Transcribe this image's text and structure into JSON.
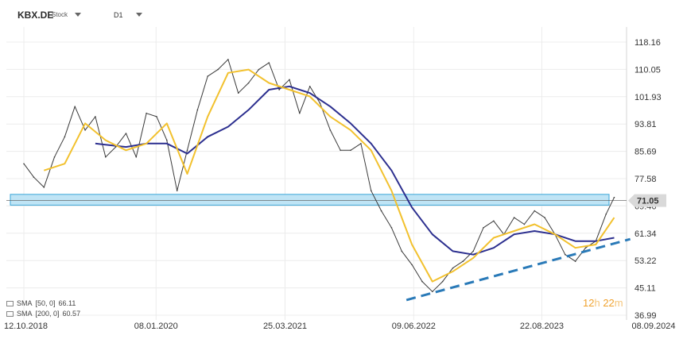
{
  "header": {
    "symbol": "KBX.DE",
    "symbol_type": "Stock",
    "timeframe": "D1"
  },
  "legend": [
    {
      "label": "SMA",
      "params": "[50,  0]",
      "value": "66.11"
    },
    {
      "label": "SMA",
      "params": "[200,  0]",
      "value": "60.57"
    }
  ],
  "countdown": {
    "hours": "12",
    "h_unit": "h",
    "minutes": "22",
    "m_unit": "m"
  },
  "colors": {
    "price": "#3a3a3a",
    "sma50": "#f2c12e",
    "sma200": "#2c2f8f",
    "zone_fill": "#bfe4f5",
    "zone_stroke": "#3aa6d8",
    "trendline": "#2a7ab8",
    "price_label_bg": "#d9d9d9",
    "countdown": "#f0a22e"
  },
  "chart_data": {
    "type": "line",
    "x_ticks": [
      "12.10.2018",
      "08.01.2020",
      "25.03.2021",
      "09.06.2022",
      "22.08.2023",
      "08.09.2024"
    ],
    "y_ticks": [
      "118.16",
      "110.05",
      "101.93",
      "93.81",
      "85.69",
      "77.58",
      "69.46",
      "61.34",
      "53.22",
      "45.11",
      "36.99"
    ],
    "ylim": [
      36.99,
      118.16
    ],
    "current_price_label": "71.05",
    "grid": true,
    "support_zone": {
      "low": 69.7,
      "high": 72.9
    },
    "trendline": {
      "from": {
        "date": "2022-05-15",
        "value": 41.5
      },
      "to": {
        "date": "2024-06-20",
        "value": 59.6
      }
    },
    "series": [
      {
        "name": "Price",
        "role": "price",
        "dates": [
          "2018-10-12",
          "2018-11-15",
          "2018-12-20",
          "2019-01-25",
          "2019-03-01",
          "2019-04-05",
          "2019-05-10",
          "2019-06-14",
          "2019-07-19",
          "2019-08-23",
          "2019-09-27",
          "2019-11-01",
          "2019-12-06",
          "2020-01-10",
          "2020-02-14",
          "2020-03-20",
          "2020-04-24",
          "2020-05-29",
          "2020-07-03",
          "2020-08-07",
          "2020-09-11",
          "2020-10-16",
          "2020-11-20",
          "2020-12-25",
          "2021-01-29",
          "2021-03-05",
          "2021-04-09",
          "2021-05-14",
          "2021-06-18",
          "2021-07-23",
          "2021-08-27",
          "2021-10-01",
          "2021-11-05",
          "2021-12-10",
          "2022-01-14",
          "2022-02-18",
          "2022-03-25",
          "2022-04-29",
          "2022-06-03",
          "2022-07-08",
          "2022-08-12",
          "2022-09-16",
          "2022-10-21",
          "2022-11-25",
          "2022-12-30",
          "2023-02-03",
          "2023-03-10",
          "2023-04-14",
          "2023-05-19",
          "2023-06-23",
          "2023-07-28",
          "2023-09-01",
          "2023-10-06",
          "2023-11-10",
          "2023-12-15",
          "2024-01-19",
          "2024-02-23",
          "2024-03-29",
          "2024-04-26"
        ],
        "values": [
          82,
          78,
          75,
          84,
          90,
          99,
          92,
          96,
          84,
          87,
          91,
          84,
          97,
          96,
          89,
          74,
          86,
          98,
          108,
          110,
          113,
          103,
          106,
          110,
          112,
          104,
          107,
          97,
          105,
          100,
          92,
          86,
          86,
          88,
          74,
          68,
          63,
          56,
          52,
          47,
          44,
          47,
          51,
          53,
          56,
          63,
          65,
          61,
          66,
          64,
          68,
          66,
          61,
          55,
          53,
          57,
          59,
          67,
          72
        ]
      },
      {
        "name": "SMA [50,  0]",
        "role": "sma50",
        "dates": [
          "2018-12-20",
          "2019-03-01",
          "2019-05-10",
          "2019-07-19",
          "2019-09-27",
          "2019-12-06",
          "2020-02-14",
          "2020-04-24",
          "2020-07-03",
          "2020-09-11",
          "2020-11-20",
          "2021-01-29",
          "2021-04-09",
          "2021-06-18",
          "2021-08-27",
          "2021-11-05",
          "2022-01-14",
          "2022-03-25",
          "2022-06-03",
          "2022-08-12",
          "2022-10-21",
          "2022-12-30",
          "2023-03-10",
          "2023-05-19",
          "2023-07-28",
          "2023-10-06",
          "2023-12-15",
          "2024-02-23",
          "2024-04-26"
        ],
        "values": [
          80,
          82,
          94,
          89,
          86,
          88,
          94,
          79,
          96,
          109,
          110,
          106,
          104,
          102,
          96,
          92,
          86,
          74,
          58,
          47,
          50,
          54,
          60,
          62,
          64,
          61,
          57,
          58,
          66
        ]
      },
      {
        "name": "SMA [200,  0]",
        "role": "sma200",
        "dates": [
          "2019-06-14",
          "2019-09-27",
          "2019-12-06",
          "2020-02-14",
          "2020-04-24",
          "2020-07-03",
          "2020-09-11",
          "2020-11-20",
          "2021-01-29",
          "2021-04-09",
          "2021-06-18",
          "2021-08-27",
          "2021-11-05",
          "2022-01-14",
          "2022-03-25",
          "2022-06-03",
          "2022-08-12",
          "2022-10-21",
          "2022-12-30",
          "2023-03-10",
          "2023-05-19",
          "2023-07-28",
          "2023-10-06",
          "2023-12-15",
          "2024-02-23",
          "2024-04-26"
        ],
        "values": [
          88,
          87,
          88,
          88,
          85,
          90,
          93,
          98,
          104,
          105,
          103,
          99,
          94,
          88,
          80,
          69,
          61,
          56,
          55,
          57,
          61,
          62,
          61,
          59,
          59,
          60
        ]
      }
    ]
  }
}
